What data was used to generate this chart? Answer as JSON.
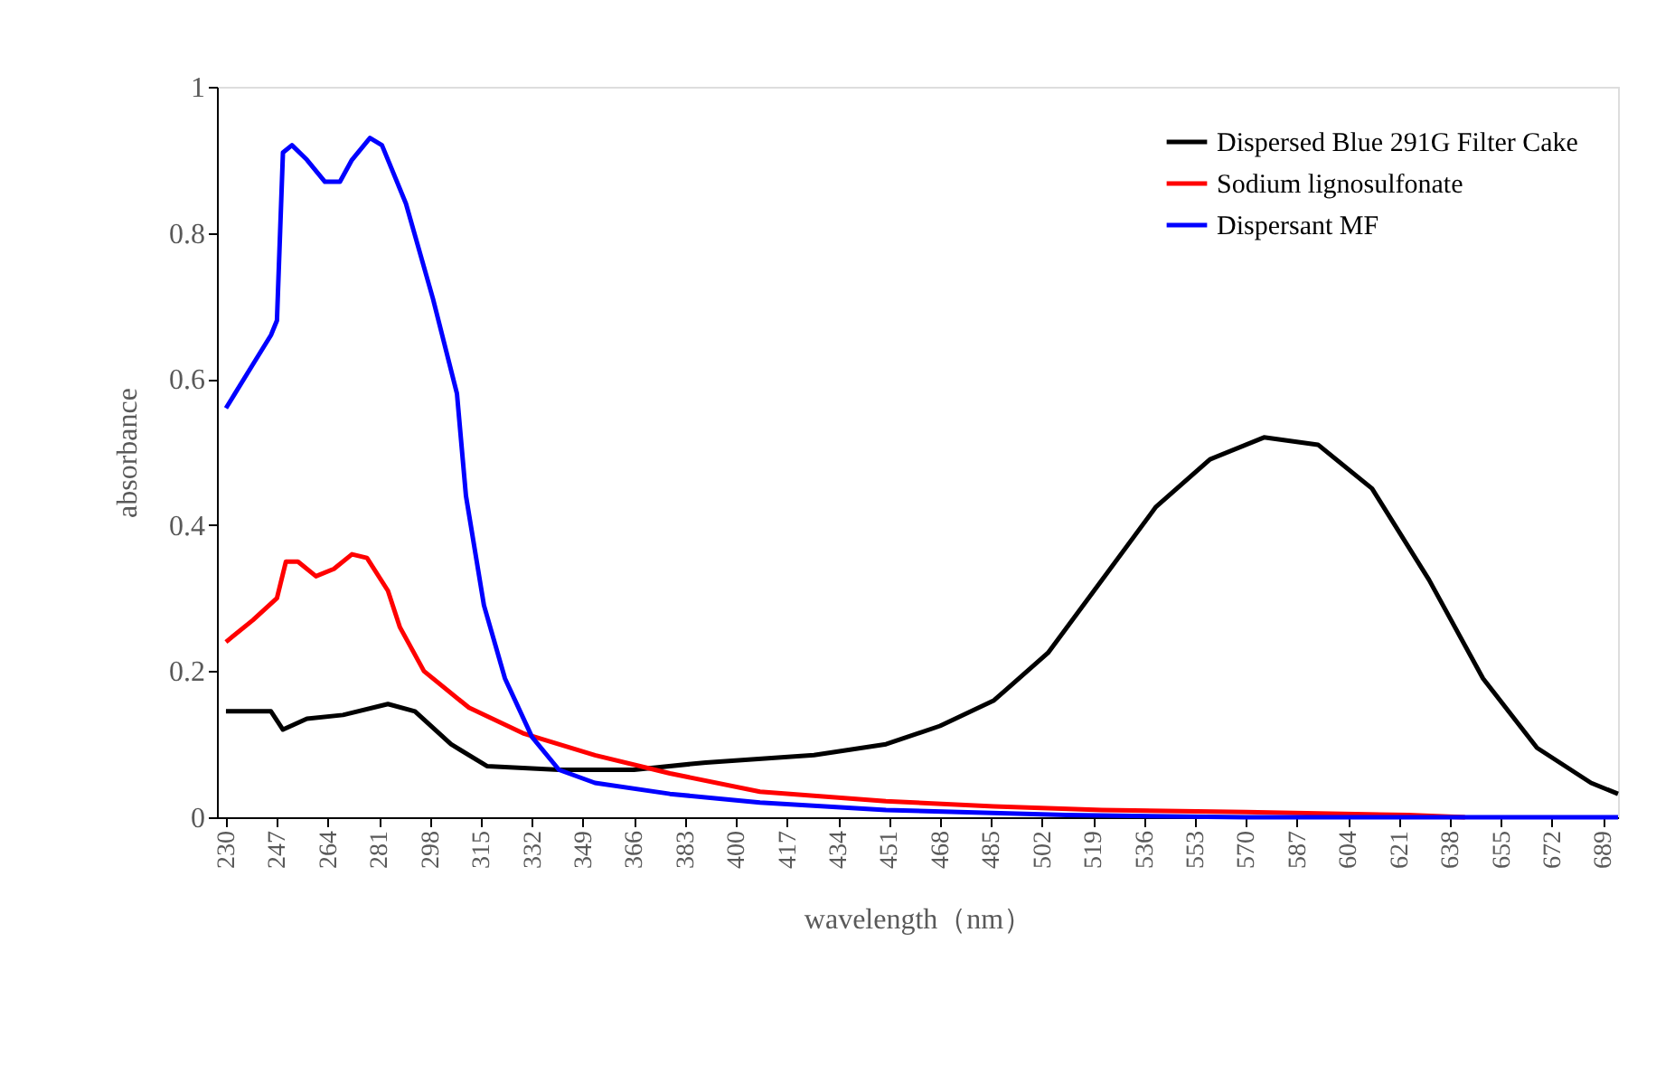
{
  "chart_data": {
    "type": "line",
    "xlabel": "wavelength（nm）",
    "ylabel": "absorbance",
    "xlim": [
      227,
      694
    ],
    "xticks": [
      230,
      247,
      264,
      281,
      298,
      315,
      332,
      349,
      366,
      383,
      400,
      417,
      434,
      451,
      468,
      485,
      502,
      519,
      536,
      553,
      570,
      587,
      604,
      621,
      638,
      655,
      672,
      689
    ],
    "ylim": [
      0,
      1
    ],
    "yticks": [
      0,
      0.2,
      0.4,
      0.6,
      0.8,
      1
    ],
    "grid": false,
    "legend": "top right",
    "marker": "none",
    "line_style": "solid",
    "series": [
      {
        "name": "Dispersed Blue 291G  Filter Cake",
        "color": "#000000",
        "x": [
          230,
          245,
          249,
          257,
          269,
          284,
          293,
          305,
          317,
          341,
          366,
          390,
          426,
          450,
          468,
          486,
          504,
          522,
          540,
          558,
          576,
          594,
          612,
          631,
          649,
          667,
          685,
          694
        ],
        "values": [
          0.145,
          0.145,
          0.12,
          0.135,
          0.14,
          0.155,
          0.145,
          0.1,
          0.07,
          0.065,
          0.065,
          0.075,
          0.085,
          0.1,
          0.125,
          0.16,
          0.225,
          0.325,
          0.425,
          0.49,
          0.52,
          0.51,
          0.45,
          0.325,
          0.19,
          0.095,
          0.047,
          0.032
        ]
      },
      {
        "name": "Sodium lignosulfonate",
        "color": "#ff0000",
        "x": [
          230,
          239,
          247,
          250,
          254,
          260,
          266,
          272,
          277,
          284,
          288,
          296,
          311,
          329,
          353,
          378,
          408,
          450,
          486,
          522,
          570,
          624,
          643
        ],
        "values": [
          0.24,
          0.27,
          0.3,
          0.35,
          0.35,
          0.33,
          0.34,
          0.36,
          0.355,
          0.31,
          0.26,
          0.2,
          0.15,
          0.115,
          0.085,
          0.06,
          0.035,
          0.022,
          0.015,
          0.01,
          0.007,
          0.003,
          0
        ]
      },
      {
        "name": "Dispersant MF",
        "color": "#0000ff",
        "x": [
          230,
          233,
          239,
          245,
          247,
          249,
          252,
          257,
          263,
          268,
          272,
          278,
          282,
          290,
          299,
          307,
          310,
          316,
          323,
          332,
          341,
          353,
          378,
          408,
          450,
          510,
          570,
          694
        ],
        "values": [
          0.56,
          0.58,
          0.62,
          0.66,
          0.68,
          0.91,
          0.92,
          0.9,
          0.87,
          0.87,
          0.9,
          0.93,
          0.92,
          0.84,
          0.71,
          0.58,
          0.44,
          0.29,
          0.19,
          0.11,
          0.065,
          0.047,
          0.032,
          0.02,
          0.01,
          0.003,
          0,
          0
        ]
      }
    ]
  }
}
